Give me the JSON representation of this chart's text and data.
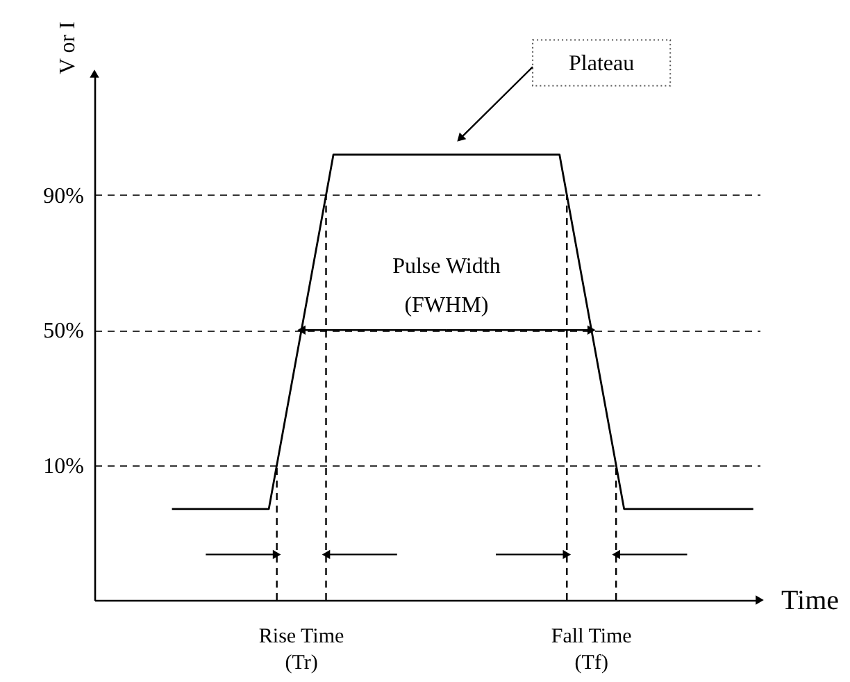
{
  "chart_data": {
    "type": "line",
    "xlabel": "Time",
    "ylabel": "V or I",
    "categories": [
      null,
      null,
      null,
      null,
      null,
      null,
      null,
      null,
      null,
      null,
      null,
      null,
      null,
      null,
      null,
      null,
      null,
      null,
      null
    ],
    "series": [
      {
        "color": "#000000",
        "values": [
          -3,
          -3,
          -3,
          -3,
          49.5,
          102,
          102,
          102,
          102,
          102,
          102,
          102,
          102,
          49.5,
          -3,
          -3,
          -3,
          -3,
          -3
        ]
      }
    ],
    "ylim": [
      -30,
      126
    ],
    "yticks": [
      {
        "value": 10,
        "label": "10%"
      },
      {
        "value": 50,
        "label": "50%"
      },
      {
        "value": 90,
        "label": "90%"
      }
    ],
    "grid": "y",
    "tick_labels": "y",
    "annotations": [
      "Plateau",
      "Pulse Width\n(FWHM)",
      "Rise Time\n(Tr)",
      "Fall Time\n(Tf)"
    ]
  }
}
